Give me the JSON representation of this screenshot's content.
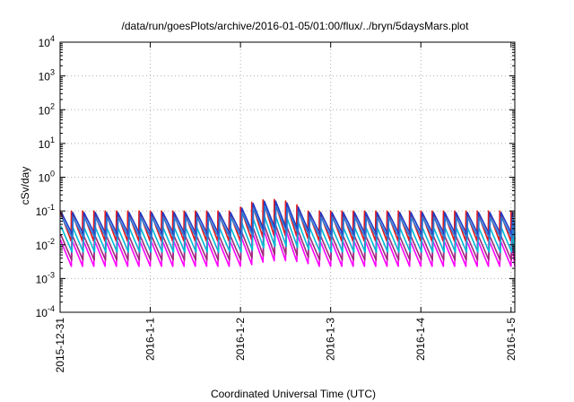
{
  "chart_data": {
    "type": "line",
    "title": "/data/run/goesPlots/archive/2016-01-05/01:00/flux/../bryn/5daysMars.plot",
    "xlabel": "Coordinated Universal Time (UTC)",
    "ylabel": "cSv/day",
    "x_ticks": [
      "2015-12-31",
      "2016-1-1",
      "2016-1-2",
      "2016-1-3",
      "2016-1-4",
      "2016-1-5"
    ],
    "xlim": [
      "2015-12-31T00:00",
      "2016-01-05T01:00"
    ],
    "y_scale": "log",
    "ylim": [
      0.0001,
      10000
    ],
    "y_ticks": [
      {
        "base": "10",
        "exp": "-4"
      },
      {
        "base": "10",
        "exp": "-3"
      },
      {
        "base": "10",
        "exp": "-2"
      },
      {
        "base": "10",
        "exp": "-1"
      },
      {
        "base": "10",
        "exp": "0"
      },
      {
        "base": "10",
        "exp": "1"
      },
      {
        "base": "10",
        "exp": "2"
      },
      {
        "base": "10",
        "exp": "3"
      },
      {
        "base": "10",
        "exp": "4"
      }
    ],
    "grid": true,
    "pattern": {
      "cycles_per_day": 8,
      "enhanced_interval": [
        "2016-01-02T00:00",
        "2016-01-03T00:00"
      ],
      "enhanced_peak_factor": 2.2
    },
    "series": [
      {
        "color": "#e41a1c",
        "peak": 0.1,
        "trough": 0.013
      },
      {
        "color": "#ff00ff",
        "peak": 0.014,
        "trough": 0.0023
      },
      {
        "color": "#9e2a78",
        "peak": 0.02,
        "trough": 0.0035
      },
      {
        "color": "#00bcd4",
        "peak": 0.035,
        "trough": 0.006
      },
      {
        "color": "#1f3cc8",
        "peak": 0.09,
        "trough": 0.02
      },
      {
        "color": "#2b7bd6",
        "peak": 0.065,
        "trough": 0.015
      }
    ]
  }
}
